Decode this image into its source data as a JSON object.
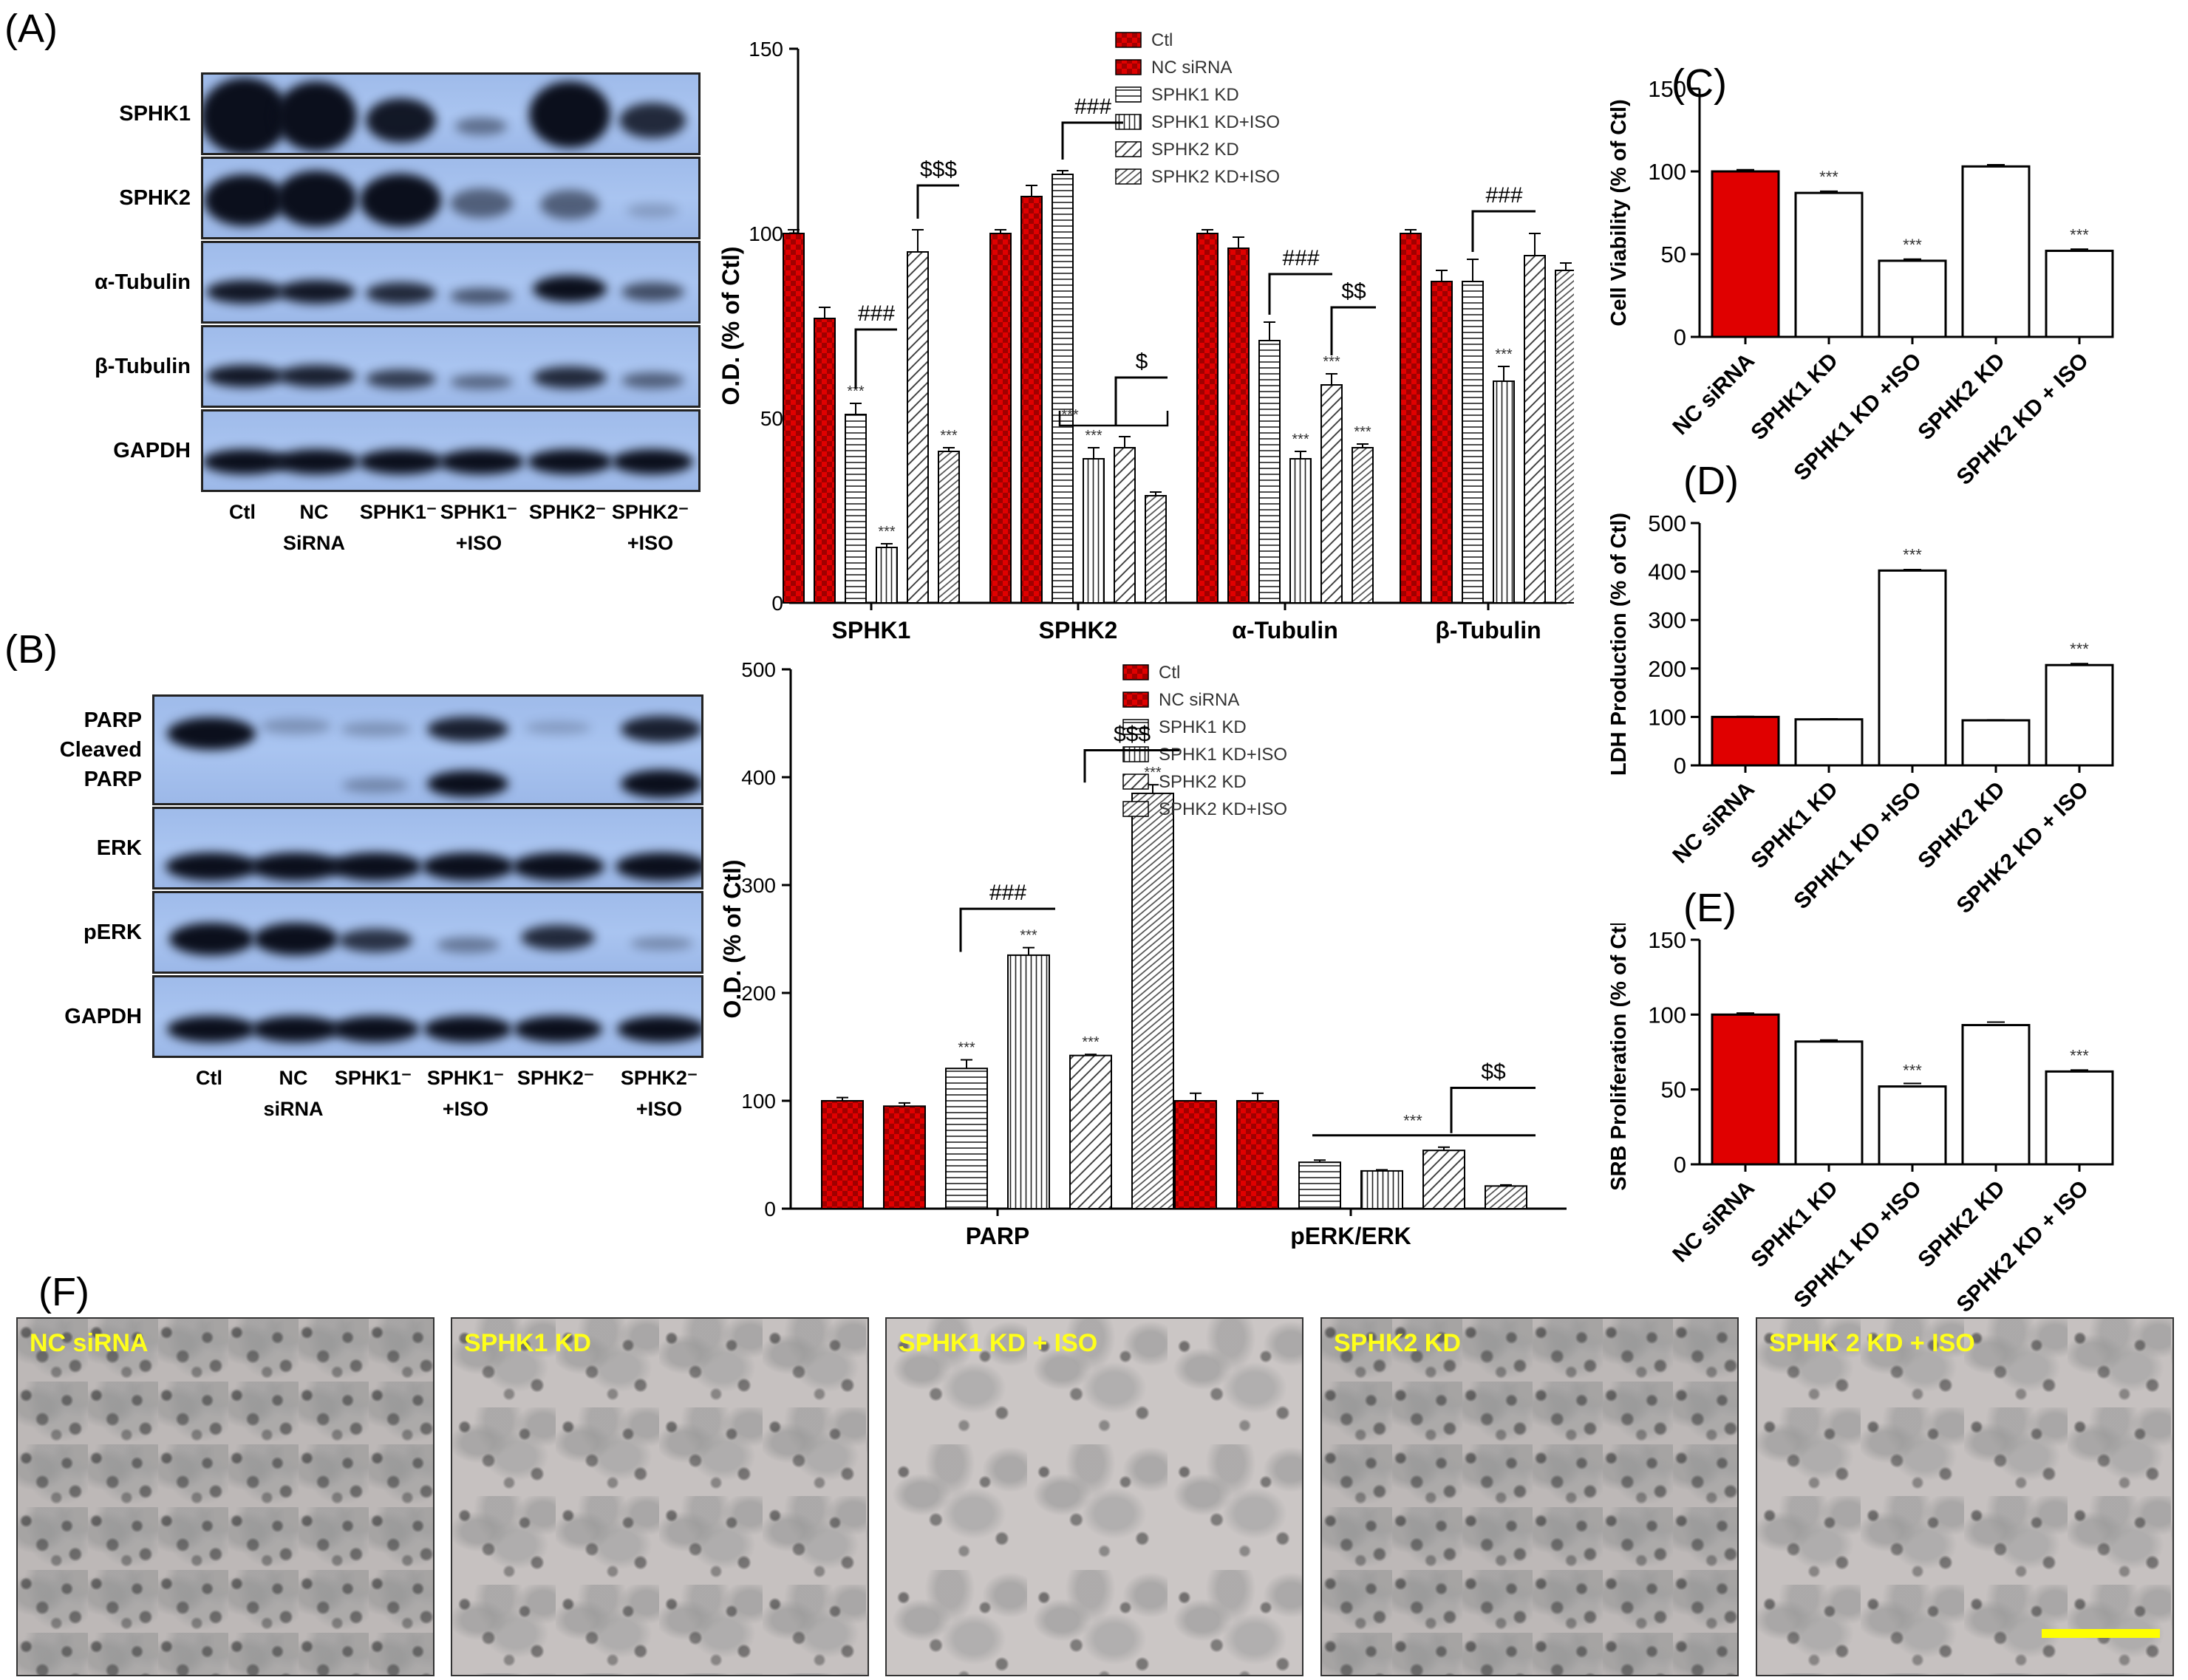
{
  "panel_labels": {
    "A": "(A)",
    "B": "(B)",
    "C": "(C)",
    "D": "(D)",
    "E": "(E)",
    "F": "(F)"
  },
  "blot_A": {
    "rows": [
      "SPHK1",
      "SPHK2",
      "α-Tubulin",
      "β-Tubulin",
      "GAPDH"
    ],
    "lanes": [
      [
        "Ctl",
        ""
      ],
      [
        "NC",
        "SiRNA"
      ],
      [
        "SPHK1⁻",
        ""
      ],
      [
        "SPHK1⁻",
        "+ISO"
      ],
      [
        "SPHK2⁻",
        ""
      ],
      [
        "SPHK2⁻",
        "+ISO"
      ]
    ]
  },
  "blot_B": {
    "rows": [
      "PARP\nCleaved\nPARP",
      "ERK",
      "pERK",
      "GAPDH"
    ],
    "row_label_lines": [
      [
        "PARP",
        "Cleaved",
        "PARP"
      ],
      [
        "ERK"
      ],
      [
        "pERK"
      ],
      [
        "GAPDH"
      ]
    ],
    "lanes": [
      [
        "Ctl",
        ""
      ],
      [
        "NC",
        "siRNA"
      ],
      [
        "SPHK1⁻",
        ""
      ],
      [
        "SPHK1⁻",
        "+ISO"
      ],
      [
        "SPHK2⁻",
        ""
      ],
      [
        "SPHK2⁻",
        "+ISO"
      ]
    ]
  },
  "colors": {
    "red": "#e00000",
    "dark_red": "#a00000",
    "black": "#000000",
    "scale_bar": "#ffff00"
  },
  "chart_data": [
    {
      "id": "A-bar",
      "type": "bar",
      "ylabel": "O.D. (% of Ctl)",
      "ylim": [
        0,
        150
      ],
      "yticks": [
        0,
        50,
        100,
        150
      ],
      "categories": [
        "SPHK1",
        "SPHK2",
        "α-Tubulin",
        "β-Tubulin"
      ],
      "legend_position": "top-right",
      "series": [
        {
          "name": "Ctl",
          "values": [
            100,
            100,
            100,
            100
          ],
          "errors": [
            1,
            1,
            1,
            1
          ],
          "pattern": "red-check"
        },
        {
          "name": "NC siRNA",
          "values": [
            77,
            110,
            96,
            87
          ],
          "errors": [
            3,
            3,
            3,
            3
          ],
          "pattern": "red-check"
        },
        {
          "name": "SPHK1 KD",
          "values": [
            51,
            116,
            71,
            87
          ],
          "errors": [
            3,
            1,
            5,
            6
          ],
          "pattern": "hstripe"
        },
        {
          "name": "SPHK1 KD+ISO",
          "values": [
            15,
            39,
            39,
            60
          ],
          "errors": [
            1,
            3,
            2,
            4
          ],
          "pattern": "vstripe"
        },
        {
          "name": "SPHK2 KD",
          "values": [
            95,
            42,
            59,
            94
          ],
          "errors": [
            6,
            3,
            3,
            6
          ],
          "pattern": "diag"
        },
        {
          "name": "SPHK2 KD+ISO",
          "values": [
            41,
            29,
            42,
            90
          ],
          "errors": [
            1,
            1,
            1,
            2
          ],
          "pattern": "diag2"
        }
      ],
      "stars": [
        [
          null,
          null,
          "***",
          "***",
          null,
          "***"
        ],
        [
          null,
          null,
          null,
          "***",
          null,
          null
        ],
        [
          null,
          null,
          null,
          "***",
          "***",
          "***"
        ],
        [
          null,
          null,
          null,
          "***",
          null,
          null
        ]
      ],
      "brackets": [
        "###",
        "$$$",
        "###",
        "$",
        "###",
        "$$",
        "###"
      ]
    },
    {
      "id": "B-bar",
      "type": "bar",
      "ylabel": "O.D. (% of Ctl)",
      "ylim": [
        0,
        500
      ],
      "yticks": [
        0,
        100,
        200,
        300,
        400,
        500
      ],
      "categories": [
        "PARP",
        "pERK/ERK"
      ],
      "legend_position": "top-right",
      "series": [
        {
          "name": "Ctl",
          "values": [
            100,
            100
          ],
          "errors": [
            3,
            7
          ],
          "pattern": "red-check"
        },
        {
          "name": "NC siRNA",
          "values": [
            95,
            100
          ],
          "errors": [
            3,
            7
          ],
          "pattern": "red-check"
        },
        {
          "name": "SPHK1 KD",
          "values": [
            130,
            43
          ],
          "errors": [
            8,
            2
          ],
          "pattern": "hstripe"
        },
        {
          "name": "SPHK1 KD+ISO",
          "values": [
            235,
            35
          ],
          "errors": [
            7,
            1
          ],
          "pattern": "vstripe"
        },
        {
          "name": "SPHK2 KD",
          "values": [
            142,
            54
          ],
          "errors": [
            1,
            3
          ],
          "pattern": "diag"
        },
        {
          "name": "SPHK2 KD+ISO",
          "values": [
            385,
            21
          ],
          "errors": [
            8,
            1
          ],
          "pattern": "diag2"
        }
      ],
      "stars": [
        [
          null,
          null,
          "***",
          "***",
          "***",
          "***"
        ],
        [
          null,
          null,
          null,
          null,
          null,
          null
        ]
      ],
      "brackets": [
        "###",
        "$$$",
        "***",
        "$$"
      ]
    },
    {
      "id": "C",
      "type": "bar",
      "ylabel": "Cell Viability (% of Ctl)",
      "ylim": [
        0,
        150
      ],
      "yticks": [
        0,
        50,
        100,
        150
      ],
      "categories": [
        "NC siRNA",
        "SPHK1 KD",
        "SPHK1 KD +ISO",
        "SPHK2 KD",
        "SPHK2 KD + ISO"
      ],
      "values": [
        100,
        87,
        46,
        103,
        52
      ],
      "errors": [
        1,
        1,
        1,
        1,
        1
      ],
      "stars": [
        null,
        "***",
        "***",
        null,
        "***"
      ]
    },
    {
      "id": "D",
      "type": "bar",
      "ylabel": "LDH Production (% of Ctl)",
      "ylim": [
        0,
        500
      ],
      "yticks": [
        0,
        100,
        200,
        300,
        400,
        500
      ],
      "categories": [
        "NC siRNA",
        "SPHK1 KD",
        "SPHK1 KD +ISO",
        "SPHK2 KD",
        "SPHK2 KD + ISO"
      ],
      "values": [
        100,
        95,
        402,
        93,
        207
      ],
      "errors": [
        1,
        1,
        2,
        1,
        3
      ],
      "stars": [
        null,
        null,
        "***",
        null,
        "***"
      ]
    },
    {
      "id": "E",
      "type": "bar",
      "ylabel": "SRB Proliferation (% of Ctl)",
      "ylim": [
        0,
        150
      ],
      "yticks": [
        0,
        50,
        100,
        150
      ],
      "categories": [
        "NC siRNA",
        "SPHK1 KD",
        "SPHK1 KD +ISO",
        "SPHK2 KD",
        "SPHK2 KD + ISO"
      ],
      "values": [
        100,
        82,
        52,
        93,
        62
      ],
      "errors": [
        1,
        1,
        2,
        2,
        1
      ],
      "stars": [
        null,
        null,
        "***",
        null,
        "***"
      ]
    }
  ],
  "micrographs": [
    "NC siRNA",
    "SPHK1 KD",
    "SPHK1  KD + ISO",
    "SPHK2 KD",
    "SPHK 2 KD + ISO"
  ]
}
